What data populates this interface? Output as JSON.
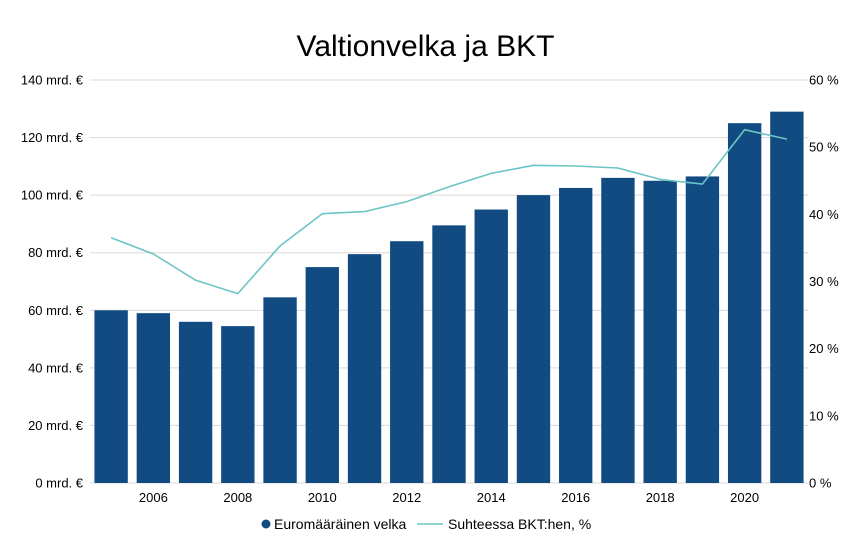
{
  "chart_data": {
    "type": "bar",
    "title": "Valtionvelka ja BKT",
    "x": [
      2005,
      2006,
      2007,
      2008,
      2009,
      2010,
      2011,
      2012,
      2013,
      2014,
      2015,
      2016,
      2017,
      2018,
      2019,
      2020,
      2021
    ],
    "x_tick_labels": [
      "2006",
      "2008",
      "2010",
      "2012",
      "2014",
      "2016",
      "2018",
      "2020"
    ],
    "y_left": {
      "ylim": [
        0,
        140
      ],
      "ticks": [
        "0 mrd. €",
        "20 mrd. €",
        "40 mrd. €",
        "60 mrd. €",
        "80 mrd. €",
        "100 mrd. €",
        "120 mrd. €",
        "140 mrd. €"
      ]
    },
    "y_right": {
      "ylim": [
        0,
        60
      ],
      "ticks": [
        "0 %",
        "10 %",
        "20 %",
        "30 %",
        "40 %",
        "50 %",
        "60 %"
      ]
    },
    "grid": true,
    "legend_position": "bottom",
    "series": [
      {
        "name": "Euromääräinen velka",
        "type": "bar",
        "axis": "left",
        "color": "#124a82",
        "values": [
          60,
          59,
          56,
          54.5,
          64.5,
          75,
          79.5,
          84,
          89.5,
          95,
          100,
          102.5,
          106,
          105,
          106.5,
          125,
          129
        ]
      },
      {
        "name": "Suhteessa BKT:hen, %",
        "type": "line",
        "axis": "right",
        "color": "#6cc5c4",
        "values": [
          36.5,
          34.1,
          30.2,
          28.2,
          35.3,
          40.1,
          40.4,
          41.9,
          44.1,
          46.1,
          47.3,
          47.2,
          46.9,
          45.2,
          44.5,
          52.6,
          51.2
        ]
      }
    ]
  }
}
